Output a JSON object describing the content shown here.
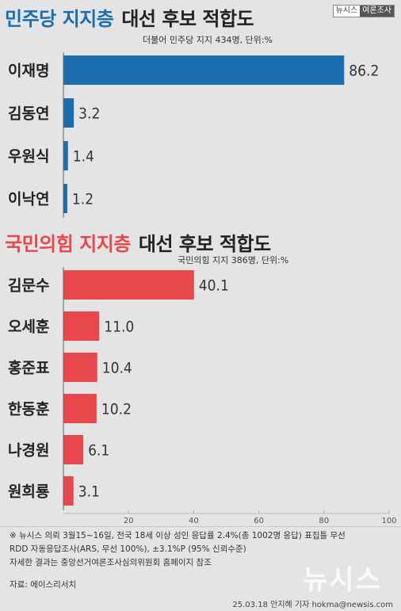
{
  "badge": {
    "left": "뉴시스",
    "right": "여론조사"
  },
  "sections": {
    "top": {
      "title_party": "민주당 지지층",
      "title_rest": "대선 후보 적합도",
      "subtitle": "더불어 민주당 지지 434명, 단위:%"
    },
    "bottom": {
      "title_party": "국민의힘 지지층",
      "title_rest": "대선 후보 적합도",
      "subtitle": "국민의힘 지지 386명, 단위:%"
    }
  },
  "colors": {
    "democratic": "#1a6eb0",
    "ppp": "#e8474c"
  },
  "chart_data": [
    {
      "type": "bar",
      "orientation": "horizontal",
      "title": "민주당 지지층 대선 후보 적합도",
      "subtitle": "더불어 민주당 지지 434명, 단위:%",
      "categories": [
        "이재명",
        "김동연",
        "우원식",
        "이낙연"
      ],
      "values": [
        86.2,
        3.2,
        1.4,
        1.2
      ],
      "value_labels": [
        "86.2",
        "3.2",
        "1.4",
        "1.2"
      ],
      "color": "#1a6eb0",
      "xlim": [
        0,
        100
      ]
    },
    {
      "type": "bar",
      "orientation": "horizontal",
      "title": "국민의힘 지지층 대선 후보 적합도",
      "subtitle": "국민의힘 지지 386명, 단위:%",
      "categories": [
        "김문수",
        "오세훈",
        "홍준표",
        "한동훈",
        "나경원",
        "원희룡"
      ],
      "values": [
        40.1,
        11.0,
        10.4,
        10.2,
        6.1,
        3.1
      ],
      "value_labels": [
        "40.1",
        "11.0",
        "10.4",
        "10.2",
        "6.1",
        "3.1"
      ],
      "color": "#e8474c",
      "xlim": [
        0,
        100
      ],
      "xticks": [
        20,
        40,
        60,
        80,
        100
      ]
    }
  ],
  "footnote": [
    "※ 뉴시스 의뢰 3월15~16일, 전국 18세 이상 성인 응답률 2.4%(총 1002명 응답) 표집틀 무선",
    "RDD 자동응답조사(ARS, 무선 100%), ±3.1%P (95% 신뢰수준)",
    "자세한 결과는 중앙선거여론조사심의위원회 홈페이지 참조"
  ],
  "source": "자료: 에이스리서치",
  "logo": "뉴시스",
  "credit": "25.03.18 안지혜 기자 hokma@newsis.com"
}
